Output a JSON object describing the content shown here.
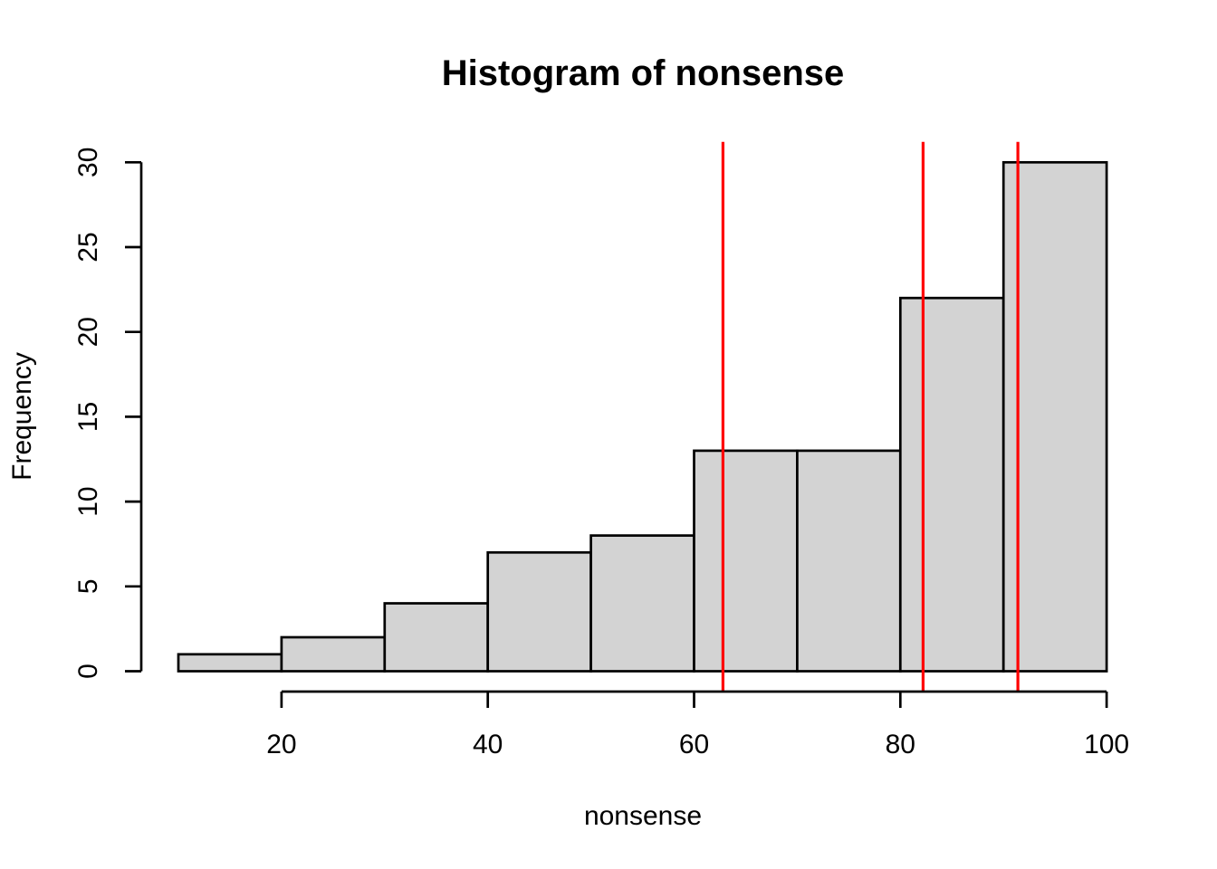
{
  "chart_data": {
    "type": "bar",
    "variant": "histogram",
    "title": "Histogram of nonsense",
    "xlabel": "nonsense",
    "ylabel": "Frequency",
    "bins": {
      "start": 10,
      "bin_width": 10,
      "counts": [
        1,
        2,
        4,
        7,
        8,
        13,
        13,
        22,
        30
      ]
    },
    "categories": [
      "10-20",
      "20-30",
      "30-40",
      "40-50",
      "50-60",
      "60-70",
      "70-80",
      "80-90",
      "90-100"
    ],
    "x_ticks": [
      20,
      40,
      60,
      80,
      100
    ],
    "y_ticks": [
      0,
      5,
      10,
      15,
      20,
      25,
      30
    ],
    "xlim": [
      10,
      100
    ],
    "ylim": [
      0,
      30
    ],
    "vlines": [
      62.8,
      82.2,
      91.4
    ],
    "grid": false,
    "legend": false,
    "colors": {
      "background": "#FFFFFF",
      "bar_fill": "#D3D3D3",
      "bar_border": "#000000",
      "axis": "#000000",
      "text": "#000000",
      "vline": "#FF0000"
    }
  }
}
